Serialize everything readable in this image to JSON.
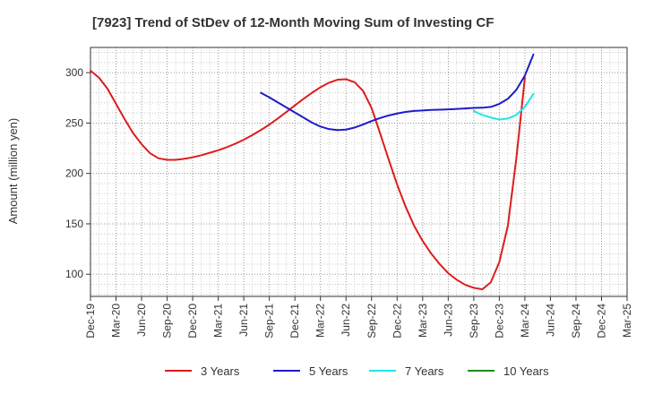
{
  "chart_data": {
    "type": "line",
    "title": "[7923]  Trend of StDev of 12-Month Moving Sum of Investing CF",
    "ylabel": "Amount (million yen)",
    "xlabel": "",
    "x_ticks": [
      "Dec-19",
      "Mar-20",
      "Jun-20",
      "Sep-20",
      "Dec-20",
      "Mar-21",
      "Jun-21",
      "Sep-21",
      "Dec-21",
      "Mar-22",
      "Jun-22",
      "Sep-22",
      "Dec-22",
      "Mar-23",
      "Jun-23",
      "Sep-23",
      "Dec-23",
      "Mar-24",
      "Jun-24",
      "Sep-24",
      "Dec-24",
      "Mar-25"
    ],
    "y_ticks": [
      100,
      150,
      200,
      250,
      300
    ],
    "ylim": [
      78,
      325
    ],
    "xlim": [
      "Dec-19",
      "Mar-25"
    ],
    "grid": true,
    "legend_position": "bottom",
    "series": [
      {
        "name": "3 Years",
        "color": "#dd1c1c",
        "points": [
          [
            "Dec-19",
            302
          ],
          [
            "Jan-20",
            295
          ],
          [
            "Feb-20",
            284
          ],
          [
            "Mar-20",
            269
          ],
          [
            "Apr-20",
            254
          ],
          [
            "May-20",
            240
          ],
          [
            "Jun-20",
            229
          ],
          [
            "Jul-20",
            220
          ],
          [
            "Aug-20",
            215
          ],
          [
            "Sep-20",
            213.5
          ],
          [
            "Oct-20",
            213.5
          ],
          [
            "Nov-20",
            214.5
          ],
          [
            "Dec-20",
            216
          ],
          [
            "Jan-21",
            218
          ],
          [
            "Feb-21",
            220.5
          ],
          [
            "Mar-21",
            223
          ],
          [
            "Apr-21",
            226
          ],
          [
            "May-21",
            229.5
          ],
          [
            "Jun-21",
            233.5
          ],
          [
            "Jul-21",
            238
          ],
          [
            "Aug-21",
            243
          ],
          [
            "Sep-21",
            248.5
          ],
          [
            "Oct-21",
            254.5
          ],
          [
            "Nov-21",
            261
          ],
          [
            "Dec-21",
            267.5
          ],
          [
            "Jan-22",
            274
          ],
          [
            "Feb-22",
            280
          ],
          [
            "Mar-22",
            285.5
          ],
          [
            "Apr-22",
            290
          ],
          [
            "May-22",
            293
          ],
          [
            "Jun-22",
            293.5
          ],
          [
            "Jul-22",
            290.5
          ],
          [
            "Aug-22",
            282
          ],
          [
            "Sep-22",
            265
          ],
          [
            "Oct-22",
            240
          ],
          [
            "Nov-22",
            214
          ],
          [
            "Dec-22",
            189
          ],
          [
            "Jan-23",
            167
          ],
          [
            "Feb-23",
            148
          ],
          [
            "Mar-23",
            133
          ],
          [
            "Apr-23",
            120.5
          ],
          [
            "May-23",
            110
          ],
          [
            "Jun-23",
            101
          ],
          [
            "Jul-23",
            94.5
          ],
          [
            "Aug-23",
            89.5
          ],
          [
            "Sep-23",
            86.5
          ],
          [
            "Oct-23",
            85
          ],
          [
            "Nov-23",
            92
          ],
          [
            "Dec-23",
            112
          ],
          [
            "Jan-24",
            148
          ],
          [
            "Feb-24",
            215
          ],
          [
            "Mar-24",
            295
          ]
        ]
      },
      {
        "name": "5 Years",
        "color": "#1c1ccc",
        "points": [
          [
            "Aug-21",
            280
          ],
          [
            "Sep-21",
            275.5
          ],
          [
            "Oct-21",
            270.5
          ],
          [
            "Nov-21",
            265.5
          ],
          [
            "Dec-21",
            260.5
          ],
          [
            "Jan-22",
            255.5
          ],
          [
            "Feb-22",
            250.5
          ],
          [
            "Mar-22",
            246.5
          ],
          [
            "Apr-22",
            244
          ],
          [
            "May-22",
            243
          ],
          [
            "Jun-22",
            243.5
          ],
          [
            "Jul-22",
            245.5
          ],
          [
            "Aug-22",
            248.5
          ],
          [
            "Sep-22",
            252
          ],
          [
            "Oct-22",
            255
          ],
          [
            "Nov-22",
            257.5
          ],
          [
            "Dec-22",
            259.5
          ],
          [
            "Jan-23",
            261
          ],
          [
            "Feb-23",
            262
          ],
          [
            "Mar-23",
            262.5
          ],
          [
            "Apr-23",
            263
          ],
          [
            "May-23",
            263.3
          ],
          [
            "Jun-23",
            263.6
          ],
          [
            "Jul-23",
            264
          ],
          [
            "Aug-23",
            264.5
          ],
          [
            "Sep-23",
            265
          ],
          [
            "Oct-23",
            265.2
          ],
          [
            "Nov-23",
            266
          ],
          [
            "Dec-23",
            269
          ],
          [
            "Jan-24",
            274
          ],
          [
            "Feb-24",
            283
          ],
          [
            "Mar-24",
            297
          ],
          [
            "Apr-24",
            318
          ]
        ]
      },
      {
        "name": "7 Years",
        "color": "#22e5e5",
        "points": [
          [
            "Sep-23",
            262
          ],
          [
            "Oct-23",
            258
          ],
          [
            "Nov-23",
            255.5
          ],
          [
            "Dec-23",
            253.5
          ],
          [
            "Jan-24",
            254.5
          ],
          [
            "Feb-24",
            258
          ],
          [
            "Mar-24",
            266
          ],
          [
            "Apr-24",
            279
          ]
        ]
      },
      {
        "name": "10 Years",
        "color": "#1e8c1e",
        "points": []
      }
    ]
  }
}
